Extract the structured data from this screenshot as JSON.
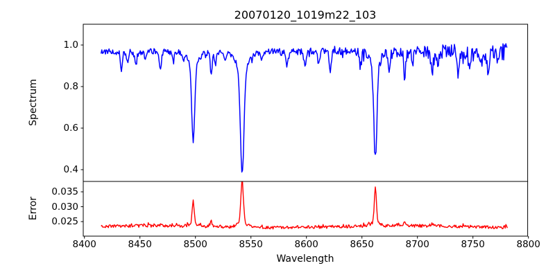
{
  "title": "20070120_1019m22_103",
  "axes": {
    "xlabel": "Wavelength",
    "x_ticks": [
      {
        "value": 8400,
        "label": "8400"
      },
      {
        "value": 8450,
        "label": "8450"
      },
      {
        "value": 8500,
        "label": "8500"
      },
      {
        "value": 8550,
        "label": "8550"
      },
      {
        "value": 8600,
        "label": "8600"
      },
      {
        "value": 8650,
        "label": "8650"
      },
      {
        "value": 8700,
        "label": "8700"
      },
      {
        "value": 8750,
        "label": "8750"
      },
      {
        "value": 8800,
        "label": "8800"
      }
    ],
    "top_panel": {
      "ylabel": "Spectrum",
      "y_ticks": [
        {
          "value": 1.0,
          "label": "1.0"
        },
        {
          "value": 0.8,
          "label": "0.8"
        },
        {
          "value": 0.6,
          "label": "0.6"
        },
        {
          "value": 0.4,
          "label": "0.4"
        }
      ],
      "ylim": [
        0.343,
        1.103
      ]
    },
    "bottom_panel": {
      "ylabel": "Error",
      "y_ticks": [
        {
          "value": 0.035,
          "label": "0.035"
        },
        {
          "value": 0.03,
          "label": "0.030"
        },
        {
          "value": 0.025,
          "label": "0.025"
        }
      ],
      "ylim": [
        0.0201,
        0.0385
      ]
    }
  },
  "chart_data": [
    {
      "type": "line",
      "name": "spectrum",
      "panel": "top",
      "color": "#0000ff",
      "title": "20070120_1019m22_103",
      "xlabel": "Wavelength",
      "ylabel": "Spectrum",
      "x_range": [
        8415,
        8781
      ],
      "xlim": [
        8399,
        8799.4
      ],
      "ylim": [
        0.343,
        1.103
      ],
      "samples": 560,
      "seed": 1019,
      "continuum_level": 0.97,
      "continuum_slope_after_8640": -4e-05,
      "noise_amplitude_left": 0.013,
      "noise_amplitude_right_max": 0.042,
      "noise_growth_start": 8590,
      "absorption_lines": [
        {
          "center": 8498.0,
          "min_value": 0.53,
          "core_depth": 0.38,
          "core_sigma": 1.3,
          "wing_depth": 0.06,
          "wing_sigma": 5.0
        },
        {
          "center": 8542.1,
          "min_value": 0.39,
          "core_depth": 0.5,
          "core_sigma": 1.6,
          "wing_depth": 0.08,
          "wing_sigma": 6.0
        },
        {
          "center": 8662.1,
          "min_value": 0.455,
          "core_depth": 0.445,
          "core_sigma": 1.4,
          "wing_depth": 0.07,
          "wing_sigma": 5.0
        }
      ],
      "minor_lines": [
        {
          "center": 8433.5,
          "depth": 0.09
        },
        {
          "center": 8439.0,
          "depth": 0.05
        },
        {
          "center": 8446.5,
          "depth": 0.06
        },
        {
          "center": 8455.0,
          "depth": 0.04
        },
        {
          "center": 8468.5,
          "depth": 0.09
        },
        {
          "center": 8480.0,
          "depth": 0.05
        },
        {
          "center": 8489.0,
          "depth": 0.04
        },
        {
          "center": 8514.2,
          "depth": 0.105
        },
        {
          "center": 8518.0,
          "depth": 0.065
        },
        {
          "center": 8526.5,
          "depth": 0.05
        },
        {
          "center": 8560.0,
          "depth": 0.04
        },
        {
          "center": 8582.5,
          "depth": 0.065
        },
        {
          "center": 8598.8,
          "depth": 0.085
        },
        {
          "center": 8611.0,
          "depth": 0.055
        },
        {
          "center": 8621.5,
          "depth": 0.085
        },
        {
          "center": 8648.5,
          "depth": 0.065
        },
        {
          "center": 8674.7,
          "depth": 0.075
        },
        {
          "center": 8688.6,
          "depth": 0.125
        },
        {
          "center": 8695.5,
          "depth": 0.065
        },
        {
          "center": 8713.2,
          "depth": 0.105
        },
        {
          "center": 8718.5,
          "depth": 0.065
        },
        {
          "center": 8736.5,
          "depth": 0.085
        },
        {
          "center": 8747.0,
          "depth": 0.075
        },
        {
          "center": 8757.0,
          "depth": 0.065
        },
        {
          "center": 8763.5,
          "depth": 0.08
        },
        {
          "center": 8772.0,
          "depth": 0.06
        }
      ]
    },
    {
      "type": "line",
      "name": "error",
      "panel": "bottom",
      "color": "#ff0000",
      "xlabel": "Wavelength",
      "ylabel": "Error",
      "x_range": [
        8415,
        8781
      ],
      "ylim": [
        0.0201,
        0.0385
      ],
      "baseline": 0.0233,
      "noise_amplitude": 0.0005,
      "peaks": [
        {
          "center": 8498.0,
          "height": 0.0075,
          "sigma": 0.9,
          "peak_value": 0.031
        },
        {
          "center": 8542.1,
          "height": 0.0138,
          "sigma": 1.1,
          "peak_value": 0.0378
        },
        {
          "center": 8662.1,
          "height": 0.0118,
          "sigma": 0.9,
          "peak_value": 0.0362
        }
      ],
      "minor_peaks": [
        {
          "center": 8514.2,
          "height": 0.0014
        },
        {
          "center": 8688.6,
          "height": 0.0009
        },
        {
          "center": 8713.2,
          "height": 0.0008
        }
      ]
    }
  ]
}
